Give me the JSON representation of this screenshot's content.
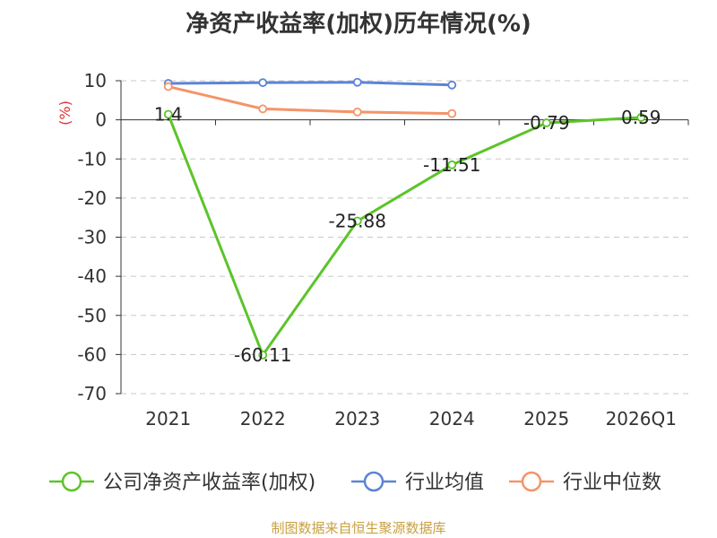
{
  "title": "净资产收益率(加权)历年情况(%)",
  "source": "制图数据来自恒生聚源数据库",
  "chart_data": {
    "type": "line",
    "title": "净资产收益率(加权)历年情况(%)",
    "ylabel": "(%)",
    "xlabel": "",
    "categories": [
      "2021",
      "2022",
      "2023",
      "2024",
      "2025",
      "2026Q1"
    ],
    "ylim": [
      -70,
      10
    ],
    "yticks": [
      10,
      0,
      -10,
      -20,
      -30,
      -40,
      -50,
      -60,
      -70
    ],
    "grid": true,
    "legend_position": "bottom",
    "series": [
      {
        "name": "公司净资产收益率(加权)",
        "color": "#5cc42a",
        "values": [
          1.4,
          -60.11,
          -25.88,
          -11.51,
          -0.79,
          0.59
        ],
        "labels": [
          "1.4",
          "-60.11",
          "-25.88",
          "-11.51",
          "-0.79",
          "0.59"
        ]
      },
      {
        "name": "行业均值",
        "color": "#5b84d6",
        "values": [
          9.3,
          9.5,
          9.6,
          8.9,
          null,
          null
        ]
      },
      {
        "name": "行业中位数",
        "color": "#f59468",
        "values": [
          8.5,
          2.8,
          2.0,
          1.6,
          null,
          null
        ]
      }
    ]
  }
}
